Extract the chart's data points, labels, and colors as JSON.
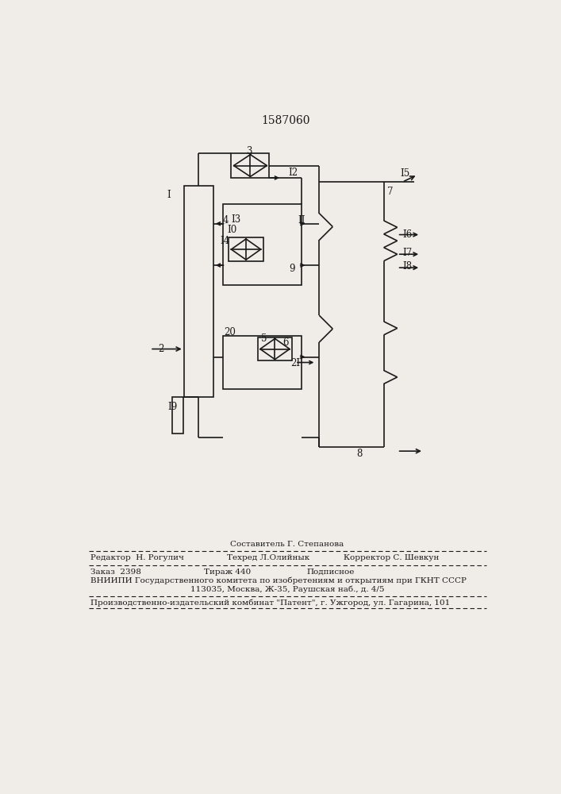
{
  "title": "1587060",
  "bg_color": "#f0ede8",
  "line_color": "#1a1a1a",
  "lw": 1.2,
  "footer": {
    "sestavitel": "Составитель Г. Степанова",
    "redaktor": "Редактор  Н. Рогулич",
    "tehred": "Техред Л.Олийнык",
    "korrektor": "Корректор С. Шевкун",
    "zakaz": "Заказ  2398",
    "tirazh": "Тираж 440",
    "podpisnoe": "Подписное",
    "vniip": "ВНИИПИ Государственного комитета по изобретениям и открытиям при ГКНТ СССР",
    "address": "113035, Москва, Ж-35, Раушская наб., д. 4/5",
    "proizv": "Производственно-издательский комбинат \"Патент\", г. Ужгород, ул. Гагарина, 101"
  }
}
